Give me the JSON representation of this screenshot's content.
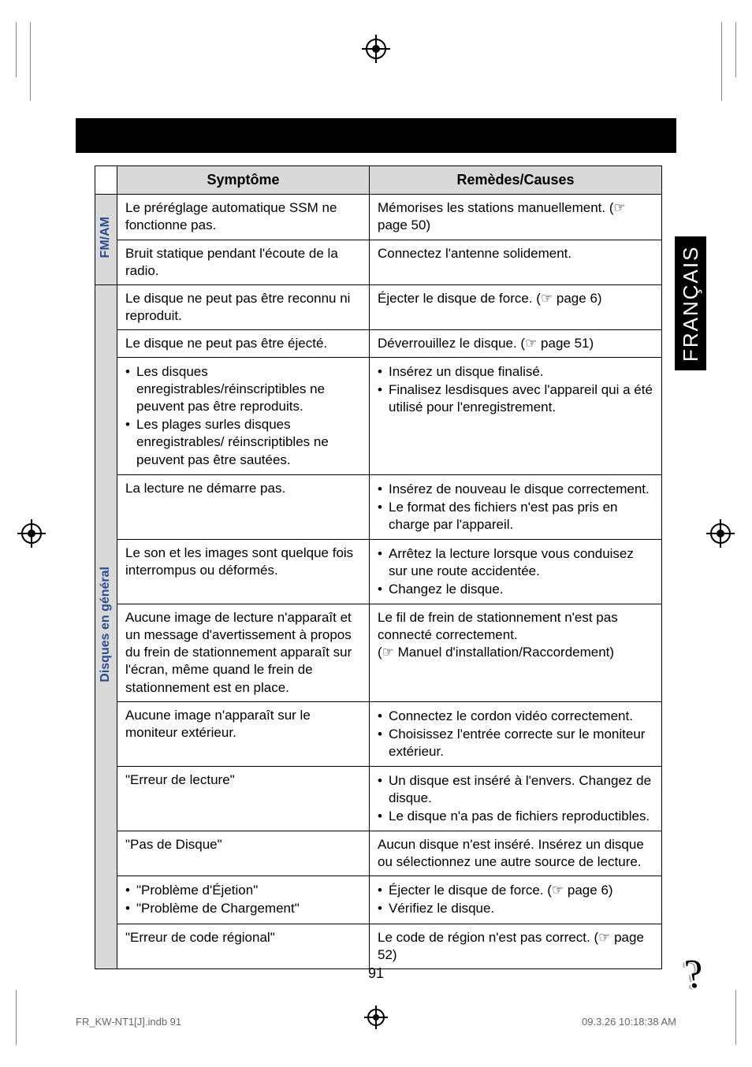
{
  "page_number": "91",
  "footer_left": "FR_KW-NT1[J].indb   91",
  "footer_right": "09.3.26   10:18:38 AM",
  "side_tab": "FRANÇAIS",
  "headers": {
    "symptom": "Symptôme",
    "remedy": "Remèdes/Causes"
  },
  "categories": {
    "fmam": "FM/AM",
    "discs": "Disques en général"
  },
  "styling": {
    "header_bg": "#d9d9d9",
    "category_label_color": "#2a4b8d",
    "border_color": "#000000",
    "font_size_body": 17,
    "font_size_header": 18,
    "header_bar_bg": "#000000",
    "side_tab_bg": "#000000",
    "side_tab_color": "#ffffff"
  },
  "rows": [
    {
      "cat": "fmam",
      "sym_type": "text",
      "sym": "Le préréglage automatique SSM ne fonctionne pas.",
      "rem_type": "text",
      "rem": "Mémorises les stations manuellement. (☞ page 50)"
    },
    {
      "cat": "fmam",
      "sym_type": "text",
      "sym": "Bruit statique pendant l'écoute de la radio.",
      "rem_type": "text",
      "rem": "Connectez l'antenne solidement."
    },
    {
      "cat": "discs",
      "sym_type": "text",
      "sym": "Le disque ne peut pas être reconnu ni reproduit.",
      "rem_type": "text",
      "rem": "Éjecter le disque de force. (☞ page 6)"
    },
    {
      "cat": "discs",
      "sym_type": "text",
      "sym": "Le disque ne peut pas être éjecté.",
      "rem_type": "text",
      "rem": "Déverrouillez le disque. (☞ page 51)"
    },
    {
      "cat": "discs",
      "sym_type": "list",
      "sym_items": [
        "Les disques enregistrables/réinscriptibles ne peuvent pas être reproduits.",
        "Les plages surles disques enregistrables/ réinscriptibles ne peuvent pas être sautées."
      ],
      "rem_type": "list",
      "rem_items": [
        "Insérez un disque finalisé.",
        "Finalisez lesdisques avec l'appareil qui a été utilisé pour l'enregistrement."
      ]
    },
    {
      "cat": "discs",
      "sym_type": "text",
      "sym": "La lecture ne démarre pas.",
      "rem_type": "list",
      "rem_items": [
        "Insérez de nouveau le disque correctement.",
        "Le format des fichiers n'est pas pris en charge par l'appareil."
      ]
    },
    {
      "cat": "discs",
      "sym_type": "text",
      "sym": "Le son et les images sont quelque fois interrompus ou déformés.",
      "rem_type": "list",
      "rem_items": [
        "Arrêtez la lecture lorsque vous conduisez sur une route accidentée.",
        "Changez le disque."
      ]
    },
    {
      "cat": "discs",
      "sym_type": "text",
      "sym": "Aucune image de lecture n'apparaît et un message d'avertissement à propos du frein de stationnement apparaît sur l'écran, même quand le frein de stationnement est en place.",
      "rem_type": "text",
      "rem": "Le fil de frein de stationnement n'est pas connecté correctement.\n(☞ Manuel d'installation/Raccordement)"
    },
    {
      "cat": "discs",
      "sym_type": "text",
      "sym": "Aucune image n'apparaît sur le moniteur extérieur.",
      "rem_type": "list",
      "rem_items": [
        "Connectez le cordon vidéo correctement.",
        "Choisissez l'entrée correcte sur le moniteur extérieur."
      ]
    },
    {
      "cat": "discs",
      "sym_type": "text",
      "sym": "\"Erreur de lecture\"",
      "rem_type": "list",
      "rem_items": [
        "Un disque est inséré à l'envers. Changez de disque.",
        "Le disque n'a pas de fichiers reproductibles."
      ]
    },
    {
      "cat": "discs",
      "sym_type": "text",
      "sym": "\"Pas de Disque\"",
      "rem_type": "text",
      "rem": "Aucun disque n'est inséré. Insérez un disque ou sélectionnez une autre source de lecture."
    },
    {
      "cat": "discs",
      "sym_type": "list",
      "sym_items": [
        "\"Problème d'Éjetion\"",
        "\"Problème de Chargement\""
      ],
      "rem_type": "list",
      "rem_items": [
        "Éjecter le disque de force. (☞ page 6)",
        "Vérifiez le disque."
      ]
    },
    {
      "cat": "discs",
      "sym_type": "text",
      "sym": "\"Erreur de code régional\"",
      "rem_type": "text",
      "rem": "Le code de région n'est pas correct. (☞ page 52)"
    }
  ]
}
